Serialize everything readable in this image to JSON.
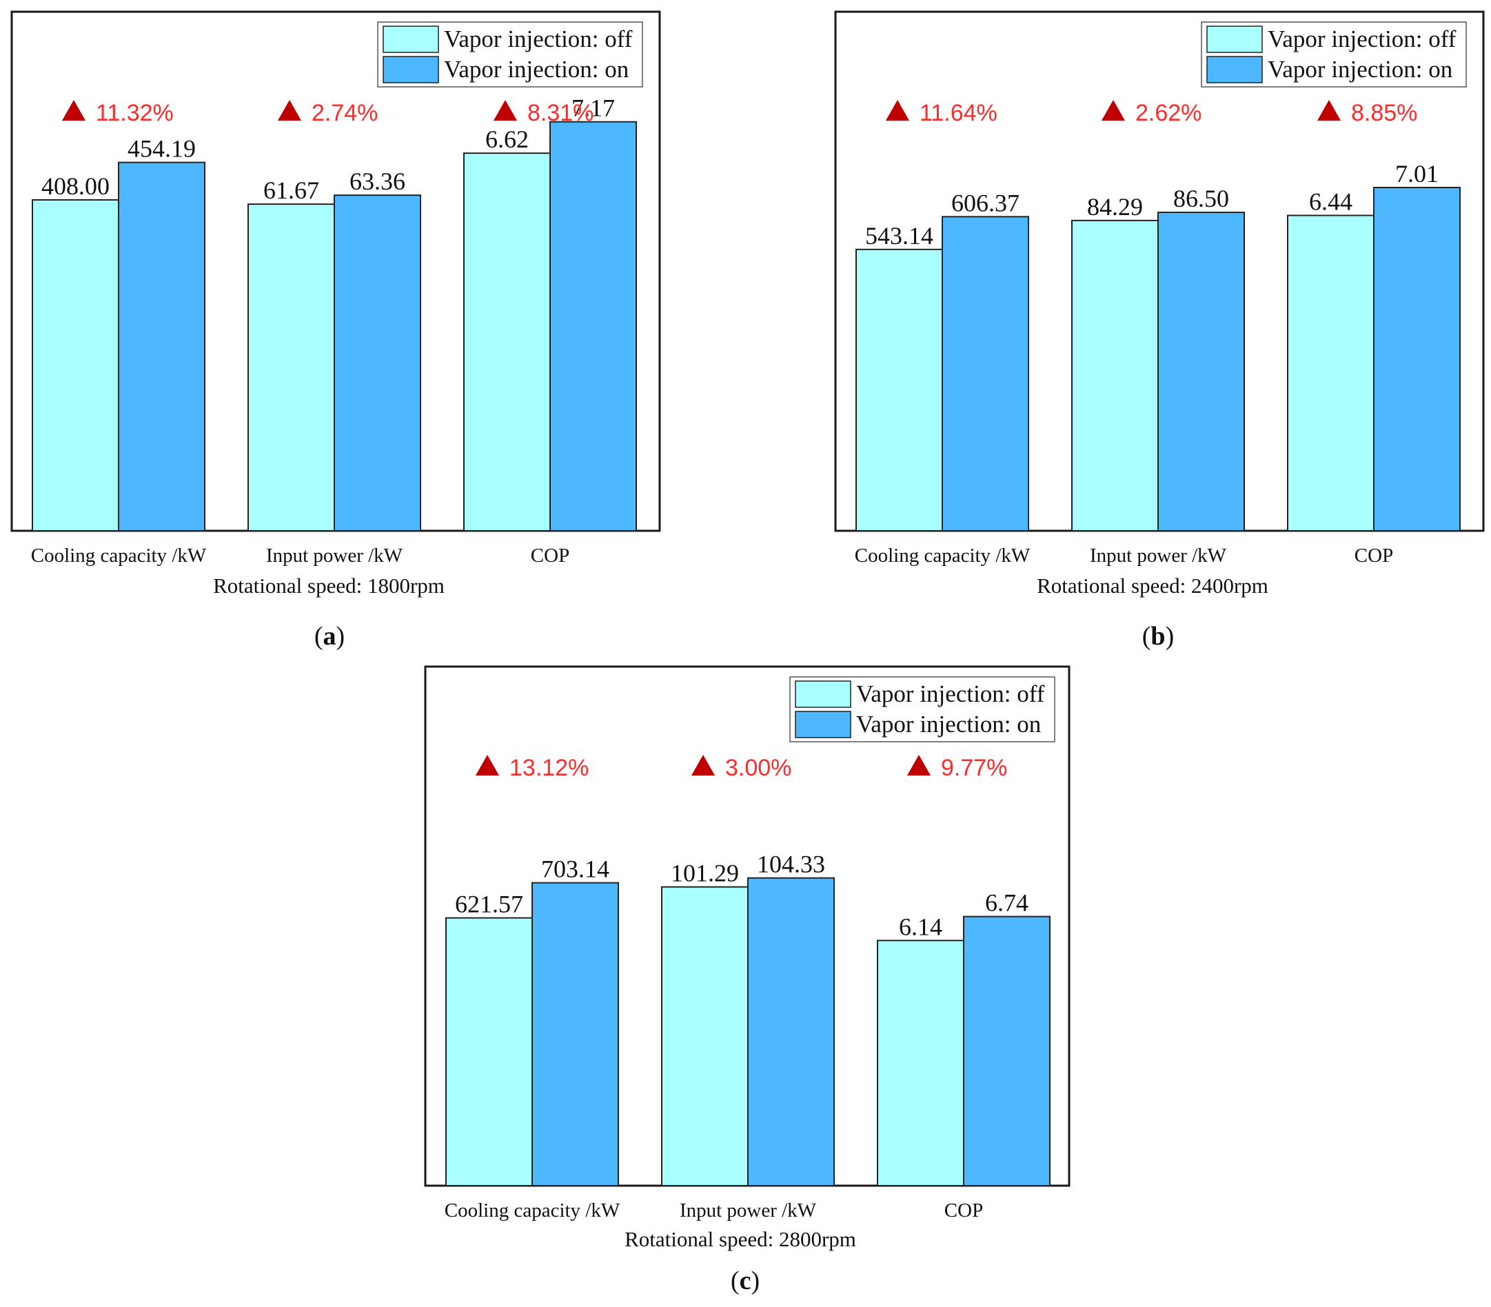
{
  "colors": {
    "off": "#aaffff",
    "on": "#4db8ff",
    "arrow": "#c00000",
    "pct_text": "#ff2a2a"
  },
  "chart_data": [
    {
      "id": "a",
      "type": "bar",
      "panel_label": "a",
      "categories": [
        "Cooling capacity /kW",
        "Input power /kW",
        "COP"
      ],
      "xlabel": "Rotational speed: 1800rpm",
      "series": [
        {
          "name": "Vapor injection: off",
          "values": [
            408.0,
            61.67,
            6.62
          ],
          "labels": [
            "408.00",
            "61.67",
            "6.62"
          ]
        },
        {
          "name": "Vapor injection: on",
          "values": [
            454.19,
            63.36,
            7.17
          ],
          "labels": [
            "454.19",
            "63.36",
            "7.17"
          ]
        }
      ],
      "increase": [
        "11.32%",
        "2.74%",
        "8.31%"
      ],
      "legend": "top-right",
      "axes_hidden": true
    },
    {
      "id": "b",
      "type": "bar",
      "panel_label": "b",
      "categories": [
        "Cooling capacity /kW",
        "Input power /kW",
        "COP"
      ],
      "xlabel": "Rotational speed: 2400rpm",
      "series": [
        {
          "name": "Vapor injection: off",
          "values": [
            543.14,
            84.29,
            6.44
          ],
          "labels": [
            "543.14",
            "84.29",
            "6.44"
          ]
        },
        {
          "name": "Vapor injection: on",
          "values": [
            606.37,
            86.5,
            7.01
          ],
          "labels": [
            "606.37",
            "86.50",
            "7.01"
          ]
        }
      ],
      "increase": [
        "11.64%",
        "2.62%",
        "8.85%"
      ],
      "legend": "top-right",
      "axes_hidden": true
    },
    {
      "id": "c",
      "type": "bar",
      "panel_label": "c",
      "categories": [
        "Cooling capacity /kW",
        "Input power /kW",
        "COP"
      ],
      "xlabel": "Rotational speed: 2800rpm",
      "series": [
        {
          "name": "Vapor injection: off",
          "values": [
            621.57,
            101.29,
            6.14
          ],
          "labels": [
            "621.57",
            "101.29",
            "6.14"
          ]
        },
        {
          "name": "Vapor injection: on",
          "values": [
            703.14,
            104.33,
            6.74
          ],
          "labels": [
            "703.14",
            "104.33",
            "6.74"
          ]
        }
      ],
      "increase": [
        "13.12%",
        "3.00%",
        "9.77%"
      ],
      "legend": "top-right",
      "axes_hidden": true
    }
  ]
}
